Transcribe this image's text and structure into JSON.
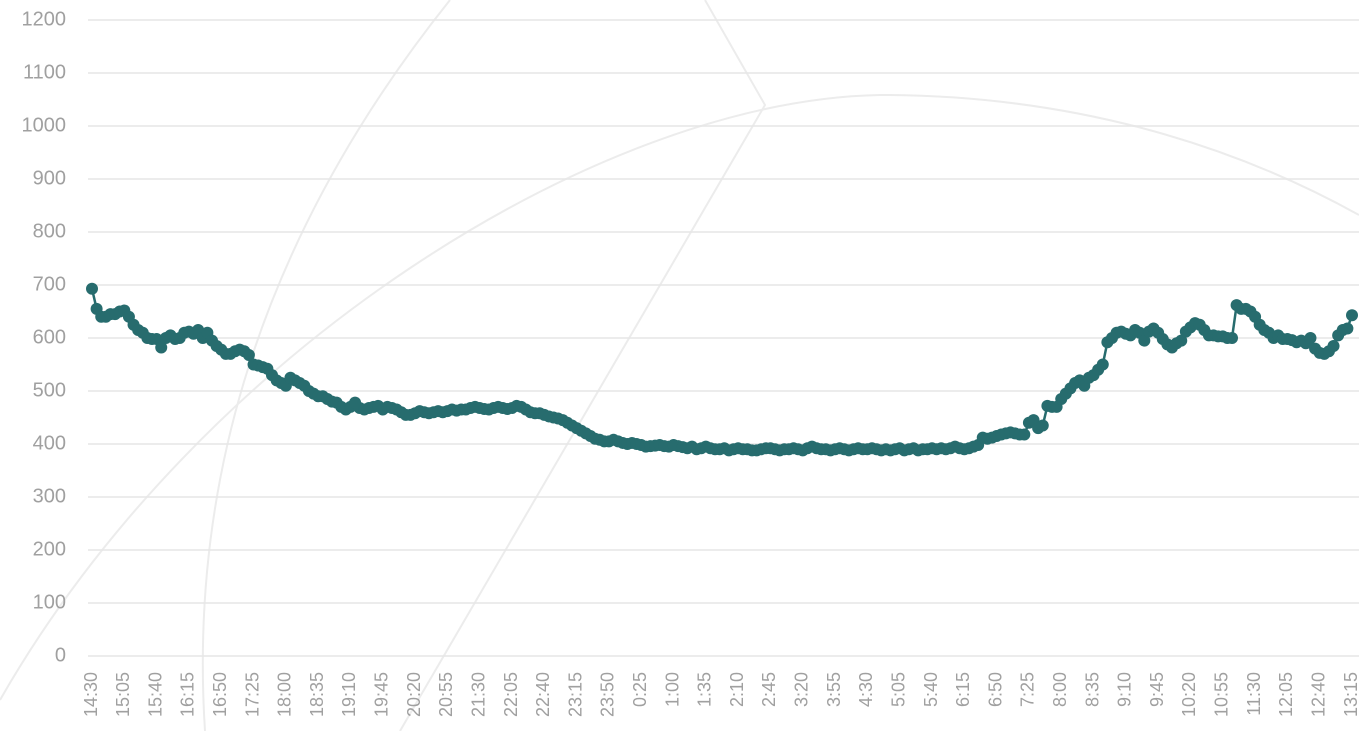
{
  "chart_data": {
    "type": "line",
    "categories": [
      "14:30",
      null,
      null,
      null,
      null,
      null,
      null,
      "15:05",
      null,
      null,
      null,
      null,
      null,
      null,
      "15:40",
      null,
      null,
      null,
      null,
      null,
      null,
      "16:15",
      null,
      null,
      null,
      null,
      null,
      null,
      "16:50",
      null,
      null,
      null,
      null,
      null,
      null,
      "17:25",
      null,
      null,
      null,
      null,
      null,
      null,
      "18:00",
      null,
      null,
      null,
      null,
      null,
      null,
      "18:35",
      null,
      null,
      null,
      null,
      null,
      null,
      "19:10",
      null,
      null,
      null,
      null,
      null,
      null,
      "19:45",
      null,
      null,
      null,
      null,
      null,
      null,
      "20:20",
      null,
      null,
      null,
      null,
      null,
      null,
      "20:55",
      null,
      null,
      null,
      null,
      null,
      null,
      "21:30",
      null,
      null,
      null,
      null,
      null,
      null,
      "22:05",
      null,
      null,
      null,
      null,
      null,
      null,
      "22:40",
      null,
      null,
      null,
      null,
      null,
      null,
      "23:15",
      null,
      null,
      null,
      null,
      null,
      null,
      "23:50",
      null,
      null,
      null,
      null,
      null,
      null,
      "0:25",
      null,
      null,
      null,
      null,
      null,
      null,
      "1:00",
      null,
      null,
      null,
      null,
      null,
      null,
      "1:35",
      null,
      null,
      null,
      null,
      null,
      null,
      "2:10",
      null,
      null,
      null,
      null,
      null,
      null,
      "2:45",
      null,
      null,
      null,
      null,
      null,
      null,
      "3:20",
      null,
      null,
      null,
      null,
      null,
      null,
      "3:55",
      null,
      null,
      null,
      null,
      null,
      null,
      "4:30",
      null,
      null,
      null,
      null,
      null,
      null,
      "5:05",
      null,
      null,
      null,
      null,
      null,
      null,
      "5:40",
      null,
      null,
      null,
      null,
      null,
      null,
      "6:15",
      null,
      null,
      null,
      null,
      null,
      null,
      "6:50",
      null,
      null,
      null,
      null,
      null,
      null,
      "7:25",
      null,
      null,
      null,
      null,
      null,
      null,
      "8:00",
      null,
      null,
      null,
      null,
      null,
      null,
      "8:35",
      null,
      null,
      null,
      null,
      null,
      null,
      "9:10",
      null,
      null,
      null,
      null,
      null,
      null,
      "9:45",
      null,
      null,
      null,
      null,
      null,
      null,
      "10:20",
      null,
      null,
      null,
      null,
      null,
      null,
      "10:55",
      null,
      null,
      null,
      null,
      null,
      null,
      "11:30",
      null,
      null,
      null,
      null,
      null,
      null,
      "12:05",
      null,
      null,
      null,
      null,
      null,
      null,
      "12:40",
      null,
      null,
      null,
      null,
      null,
      null,
      "13:15"
    ],
    "values": [
      693,
      655,
      640,
      640,
      645,
      645,
      650,
      652,
      640,
      625,
      615,
      610,
      600,
      598,
      598,
      582,
      600,
      605,
      598,
      600,
      610,
      612,
      608,
      615,
      600,
      610,
      595,
      585,
      578,
      570,
      570,
      575,
      578,
      575,
      568,
      550,
      548,
      545,
      542,
      530,
      520,
      515,
      510,
      525,
      520,
      515,
      510,
      500,
      495,
      490,
      490,
      485,
      480,
      478,
      470,
      465,
      470,
      478,
      468,
      465,
      468,
      470,
      472,
      465,
      470,
      468,
      465,
      460,
      455,
      455,
      458,
      462,
      460,
      458,
      460,
      462,
      460,
      462,
      465,
      463,
      465,
      465,
      468,
      470,
      468,
      466,
      465,
      468,
      470,
      468,
      466,
      468,
      472,
      470,
      465,
      460,
      458,
      458,
      455,
      452,
      450,
      448,
      445,
      440,
      435,
      430,
      425,
      420,
      415,
      410,
      408,
      405,
      405,
      408,
      405,
      402,
      400,
      402,
      400,
      398,
      395,
      396,
      397,
      398,
      396,
      395,
      398,
      396,
      394,
      392,
      395,
      390,
      392,
      395,
      392,
      390,
      390,
      392,
      388,
      390,
      392,
      390,
      390,
      388,
      388,
      390,
      392,
      392,
      390,
      388,
      390,
      390,
      392,
      390,
      388,
      392,
      395,
      392,
      390,
      390,
      388,
      390,
      392,
      390,
      388,
      390,
      392,
      390,
      390,
      392,
      390,
      388,
      390,
      388,
      390,
      392,
      388,
      390,
      392,
      388,
      390,
      390,
      392,
      390,
      392,
      390,
      392,
      395,
      392,
      390,
      392,
      395,
      398,
      412,
      410,
      412,
      415,
      418,
      420,
      422,
      420,
      418,
      418,
      440,
      445,
      430,
      435,
      472,
      470,
      470,
      485,
      495,
      505,
      515,
      520,
      510,
      525,
      530,
      540,
      550,
      592,
      600,
      610,
      612,
      608,
      605,
      615,
      610,
      595,
      612,
      618,
      610,
      598,
      588,
      582,
      590,
      595,
      612,
      620,
      628,
      625,
      615,
      605,
      605,
      603,
      603,
      600,
      600,
      662,
      655,
      655,
      650,
      640,
      625,
      615,
      610,
      600,
      605,
      598,
      598,
      596,
      592,
      595,
      590,
      600,
      580,
      572,
      570,
      575,
      585,
      605,
      615,
      618,
      643
    ],
    "color": "#276c6e",
    "ylim": [
      0,
      1200
    ],
    "yticks": [
      0,
      100,
      200,
      300,
      400,
      500,
      600,
      700,
      800,
      900,
      1000,
      1100,
      1200
    ],
    "grid": true
  }
}
